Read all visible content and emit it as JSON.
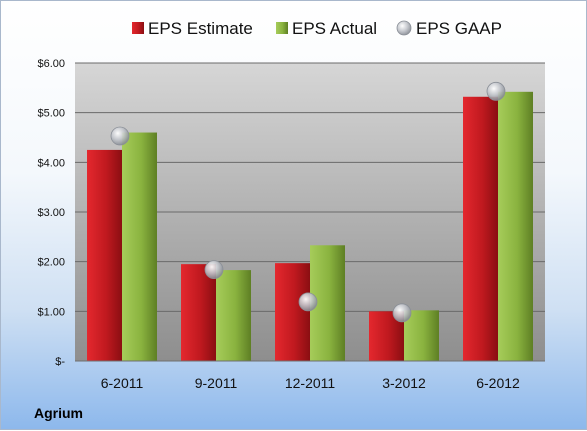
{
  "chart_data": {
    "type": "bar",
    "categories": [
      "6-2011",
      "9-2011",
      "12-2011",
      "3-2012",
      "6-2012"
    ],
    "series": [
      {
        "name": "EPS Estimate",
        "kind": "bar",
        "color": "#c0191f",
        "values": [
          4.25,
          1.95,
          1.97,
          1.0,
          5.32
        ]
      },
      {
        "name": "EPS Actual",
        "kind": "bar",
        "color": "#8ab33f",
        "values": [
          4.6,
          1.83,
          2.33,
          1.02,
          5.42
        ]
      },
      {
        "name": "EPS GAAP",
        "kind": "scatter",
        "color": "#b8bcc4",
        "values": [
          4.53,
          1.84,
          1.19,
          0.97,
          5.43
        ]
      }
    ],
    "y_ticks": [
      "$-",
      "$1.00",
      "$2.00",
      "$3.00",
      "$4.00",
      "$5.00",
      "$6.00"
    ],
    "ylim": [
      0,
      6
    ],
    "grid": true,
    "legend_position": "top"
  },
  "company": "Agrium"
}
